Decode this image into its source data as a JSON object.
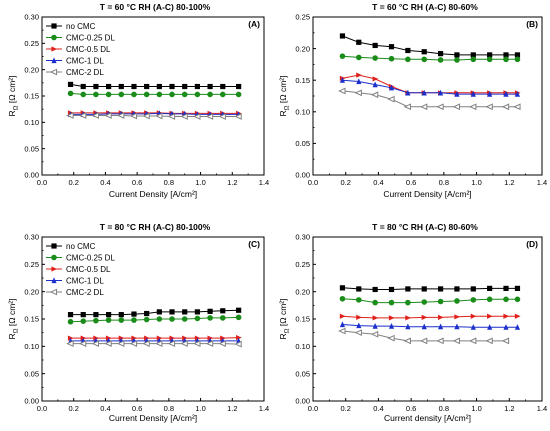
{
  "figure": {
    "colors": {
      "no CMC": "#000000",
      "CMC-0.25 DL": "#1a8c1a",
      "CMC-0.5 DL": "#e0201a",
      "CMC-1 DL": "#1a2fcc",
      "CMC-2 DL": "#808080"
    },
    "markers": {
      "no CMC": "square",
      "CMC-0.25 DL": "circle",
      "CMC-0.5 DL": "triangle-right",
      "CMC-1 DL": "triangle-up",
      "CMC-2 DL": "triangle-left-open"
    }
  },
  "chart_data": [
    {
      "type": "line",
      "panel": "(A)",
      "title": "T = 60 °C   RH (A-C) 80-100%",
      "xlabel": "Current Density [A/cm²]",
      "ylabel": "R",
      "ylabel_sub": "Ω",
      "ylabel_unit": " [Ω cm²]",
      "xlim": [
        0.0,
        1.4
      ],
      "ylim": [
        0.0,
        0.3
      ],
      "xticks": [
        "0.0",
        "0.2",
        "0.4",
        "0.6",
        "0.8",
        "1.0",
        "1.2",
        "1.4"
      ],
      "yticks": [
        "0.00",
        "0.05",
        "0.10",
        "0.15",
        "0.20",
        "0.25",
        "0.30"
      ],
      "legend": "top-left",
      "series": [
        {
          "name": "no CMC",
          "x": [
            0.18,
            0.26,
            0.34,
            0.42,
            0.5,
            0.58,
            0.66,
            0.74,
            0.82,
            0.9,
            0.98,
            1.06,
            1.14,
            1.24
          ],
          "y": [
            0.172,
            0.168,
            0.168,
            0.168,
            0.168,
            0.168,
            0.168,
            0.168,
            0.168,
            0.168,
            0.168,
            0.168,
            0.168,
            0.168
          ]
        },
        {
          "name": "CMC-0.25 DL",
          "x": [
            0.18,
            0.26,
            0.34,
            0.42,
            0.5,
            0.58,
            0.66,
            0.74,
            0.82,
            0.9,
            0.98,
            1.06,
            1.14,
            1.24
          ],
          "y": [
            0.155,
            0.153,
            0.153,
            0.153,
            0.153,
            0.153,
            0.153,
            0.153,
            0.153,
            0.153,
            0.153,
            0.153,
            0.153,
            0.153
          ]
        },
        {
          "name": "CMC-0.5 DL",
          "x": [
            0.18,
            0.26,
            0.34,
            0.42,
            0.5,
            0.58,
            0.66,
            0.74,
            0.82,
            0.9,
            0.98,
            1.06,
            1.14,
            1.24
          ],
          "y": [
            0.118,
            0.118,
            0.118,
            0.118,
            0.118,
            0.118,
            0.118,
            0.118,
            0.117,
            0.117,
            0.117,
            0.117,
            0.117,
            0.117
          ]
        },
        {
          "name": "CMC-1 DL",
          "x": [
            0.18,
            0.26,
            0.34,
            0.42,
            0.5,
            0.58,
            0.66,
            0.74,
            0.82,
            0.9,
            0.98,
            1.06,
            1.14,
            1.24
          ],
          "y": [
            0.115,
            0.115,
            0.115,
            0.116,
            0.116,
            0.116,
            0.116,
            0.117,
            0.116,
            0.116,
            0.115,
            0.115,
            0.115,
            0.115
          ]
        },
        {
          "name": "CMC-2 DL",
          "x": [
            0.18,
            0.26,
            0.34,
            0.42,
            0.5,
            0.58,
            0.66,
            0.74,
            0.82,
            0.9,
            0.98,
            1.06,
            1.14,
            1.24
          ],
          "y": [
            0.113,
            0.113,
            0.113,
            0.113,
            0.113,
            0.112,
            0.112,
            0.112,
            0.111,
            0.111,
            0.111,
            0.111,
            0.111,
            0.111
          ]
        }
      ]
    },
    {
      "type": "line",
      "panel": "(B)",
      "title": "T = 60 °C   RH (A-C) 80-60%",
      "xlabel": "Current Density [A/cm²]",
      "ylabel": "R",
      "ylabel_sub": "Ω",
      "ylabel_unit": " [Ω cm²]",
      "xlim": [
        0.0,
        1.4
      ],
      "ylim": [
        0.0,
        0.25
      ],
      "xticks": [
        "0.0",
        "0.2",
        "0.4",
        "0.6",
        "0.8",
        "1.0",
        "1.2",
        "1.4"
      ],
      "yticks": [
        "0.00",
        "0.05",
        "0.10",
        "0.15",
        "0.20",
        "0.25"
      ],
      "legend": "none",
      "series": [
        {
          "name": "no CMC",
          "x": [
            0.18,
            0.28,
            0.38,
            0.48,
            0.58,
            0.68,
            0.78,
            0.88,
            0.98,
            1.08,
            1.18,
            1.25
          ],
          "y": [
            0.22,
            0.21,
            0.205,
            0.203,
            0.197,
            0.195,
            0.192,
            0.19,
            0.19,
            0.19,
            0.19,
            0.19
          ]
        },
        {
          "name": "CMC-0.25 DL",
          "x": [
            0.18,
            0.28,
            0.38,
            0.48,
            0.58,
            0.68,
            0.78,
            0.88,
            0.98,
            1.08,
            1.18,
            1.25
          ],
          "y": [
            0.188,
            0.186,
            0.185,
            0.184,
            0.183,
            0.183,
            0.182,
            0.182,
            0.183,
            0.183,
            0.183,
            0.183
          ]
        },
        {
          "name": "CMC-0.5 DL",
          "x": [
            0.18,
            0.28,
            0.38,
            0.48,
            0.58,
            0.68,
            0.78,
            0.88,
            0.98,
            1.08,
            1.18,
            1.25
          ],
          "y": [
            0.153,
            0.158,
            0.152,
            0.14,
            0.13,
            0.13,
            0.13,
            0.13,
            0.13,
            0.13,
            0.13,
            0.13
          ]
        },
        {
          "name": "CMC-1 DL",
          "x": [
            0.18,
            0.28,
            0.38,
            0.48,
            0.58,
            0.68,
            0.78,
            0.88,
            0.98,
            1.08,
            1.18,
            1.25
          ],
          "y": [
            0.15,
            0.148,
            0.143,
            0.138,
            0.13,
            0.13,
            0.13,
            0.128,
            0.128,
            0.128,
            0.128,
            0.128
          ]
        },
        {
          "name": "CMC-2 DL",
          "x": [
            0.18,
            0.28,
            0.38,
            0.48,
            0.58,
            0.68,
            0.78,
            0.88,
            0.98,
            1.08,
            1.18,
            1.25
          ],
          "y": [
            0.133,
            0.13,
            0.127,
            0.12,
            0.108,
            0.108,
            0.108,
            0.108,
            0.108,
            0.108,
            0.108,
            0.108
          ]
        }
      ]
    },
    {
      "type": "line",
      "panel": "(C)",
      "title": "T = 80 °C   RH (A-C) 80-100%",
      "xlabel": "Current Density [A/cm²]",
      "ylabel": "R",
      "ylabel_sub": "Ω",
      "ylabel_unit": " [Ω cm²]",
      "xlim": [
        0.0,
        1.4
      ],
      "ylim": [
        0.0,
        0.3
      ],
      "xticks": [
        "0.0",
        "0.2",
        "0.4",
        "0.6",
        "0.8",
        "1.0",
        "1.2",
        "1.4"
      ],
      "yticks": [
        "0.00",
        "0.05",
        "0.10",
        "0.15",
        "0.20",
        "0.25",
        "0.30"
      ],
      "legend": "top-left",
      "series": [
        {
          "name": "no CMC",
          "x": [
            0.18,
            0.26,
            0.34,
            0.42,
            0.5,
            0.58,
            0.66,
            0.74,
            0.82,
            0.9,
            0.98,
            1.06,
            1.14,
            1.24
          ],
          "y": [
            0.158,
            0.158,
            0.158,
            0.158,
            0.158,
            0.159,
            0.16,
            0.163,
            0.163,
            0.163,
            0.163,
            0.164,
            0.165,
            0.166
          ]
        },
        {
          "name": "CMC-0.25 DL",
          "x": [
            0.18,
            0.26,
            0.34,
            0.42,
            0.5,
            0.58,
            0.66,
            0.74,
            0.82,
            0.9,
            0.98,
            1.06,
            1.14,
            1.24
          ],
          "y": [
            0.145,
            0.146,
            0.147,
            0.148,
            0.148,
            0.148,
            0.149,
            0.15,
            0.15,
            0.15,
            0.151,
            0.152,
            0.152,
            0.153
          ]
        },
        {
          "name": "CMC-0.5 DL",
          "x": [
            0.18,
            0.26,
            0.34,
            0.42,
            0.5,
            0.58,
            0.66,
            0.74,
            0.82,
            0.9,
            0.98,
            1.06,
            1.14,
            1.24
          ],
          "y": [
            0.115,
            0.115,
            0.115,
            0.115,
            0.115,
            0.115,
            0.115,
            0.115,
            0.115,
            0.115,
            0.115,
            0.115,
            0.115,
            0.116
          ]
        },
        {
          "name": "CMC-1 DL",
          "x": [
            0.18,
            0.26,
            0.34,
            0.42,
            0.5,
            0.58,
            0.66,
            0.74,
            0.82,
            0.9,
            0.98,
            1.06,
            1.14,
            1.24
          ],
          "y": [
            0.11,
            0.11,
            0.11,
            0.11,
            0.11,
            0.11,
            0.11,
            0.11,
            0.11,
            0.11,
            0.11,
            0.11,
            0.11,
            0.11
          ]
        },
        {
          "name": "CMC-2 DL",
          "x": [
            0.18,
            0.26,
            0.34,
            0.42,
            0.5,
            0.58,
            0.66,
            0.74,
            0.82,
            0.9,
            0.98,
            1.06,
            1.14,
            1.24
          ],
          "y": [
            0.105,
            0.105,
            0.105,
            0.105,
            0.105,
            0.105,
            0.105,
            0.105,
            0.105,
            0.105,
            0.105,
            0.105,
            0.105,
            0.104
          ]
        }
      ]
    },
    {
      "type": "line",
      "panel": "(D)",
      "title": "T = 80 °C   RH (A-C) 80-60%",
      "xlabel": "Current density [A/cm²]",
      "ylabel": "R",
      "ylabel_sub": "Ω",
      "ylabel_unit": " [Ω cm²]",
      "xlim": [
        0.0,
        1.4
      ],
      "ylim": [
        0.0,
        0.3
      ],
      "xticks": [
        "0.0",
        "0.2",
        "0.4",
        "0.6",
        "0.8",
        "1.0",
        "1.2",
        "1.4"
      ],
      "yticks": [
        "0.00",
        "0.05",
        "0.10",
        "0.15",
        "0.20",
        "0.25",
        "0.30"
      ],
      "legend": "none",
      "series": [
        {
          "name": "no CMC",
          "x": [
            0.18,
            0.28,
            0.38,
            0.48,
            0.58,
            0.68,
            0.78,
            0.88,
            0.98,
            1.08,
            1.18,
            1.25
          ],
          "y": [
            0.207,
            0.205,
            0.204,
            0.204,
            0.205,
            0.205,
            0.205,
            0.205,
            0.205,
            0.206,
            0.206,
            0.206
          ]
        },
        {
          "name": "CMC-0.25 DL",
          "x": [
            0.18,
            0.28,
            0.38,
            0.48,
            0.58,
            0.68,
            0.78,
            0.88,
            0.98,
            1.08,
            1.18,
            1.25
          ],
          "y": [
            0.187,
            0.185,
            0.18,
            0.18,
            0.18,
            0.181,
            0.182,
            0.183,
            0.185,
            0.186,
            0.186,
            0.186
          ]
        },
        {
          "name": "CMC-0.5 DL",
          "x": [
            0.18,
            0.28,
            0.38,
            0.48,
            0.58,
            0.68,
            0.78,
            0.88,
            0.98,
            1.08,
            1.18,
            1.25
          ],
          "y": [
            0.155,
            0.153,
            0.152,
            0.152,
            0.152,
            0.153,
            0.153,
            0.154,
            0.155,
            0.155,
            0.155,
            0.155
          ]
        },
        {
          "name": "CMC-1 DL",
          "x": [
            0.18,
            0.28,
            0.38,
            0.48,
            0.58,
            0.68,
            0.78,
            0.88,
            0.98,
            1.08,
            1.18,
            1.25
          ],
          "y": [
            0.14,
            0.138,
            0.137,
            0.137,
            0.136,
            0.136,
            0.136,
            0.136,
            0.135,
            0.135,
            0.135,
            0.135
          ]
        },
        {
          "name": "CMC-2 DL",
          "x": [
            0.18,
            0.28,
            0.38,
            0.48,
            0.58,
            0.68,
            0.78,
            0.88,
            0.98,
            1.08,
            1.18
          ],
          "y": [
            0.128,
            0.125,
            0.122,
            0.115,
            0.11,
            0.11,
            0.11,
            0.11,
            0.11,
            0.11,
            0.11
          ]
        }
      ]
    }
  ]
}
